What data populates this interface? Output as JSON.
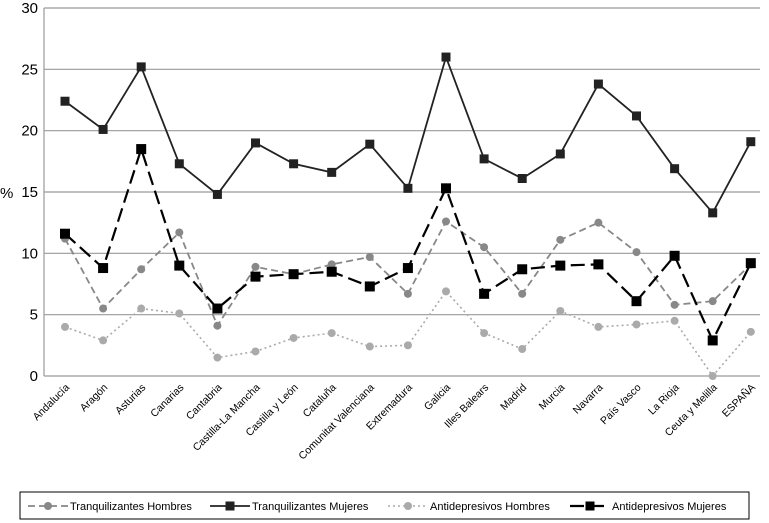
{
  "chart_data": {
    "type": "line",
    "title": "",
    "xlabel": "",
    "ylabel": "%",
    "ylim": [
      0,
      30
    ],
    "yticks": [
      0,
      5,
      10,
      15,
      20,
      25,
      30
    ],
    "grid": "horizontal",
    "legend_position": "bottom",
    "categories": [
      "Andalucía",
      "Aragón",
      "Asturias",
      "Canarias",
      "Cantabria",
      "Castilla-La Mancha",
      "Castilla y León",
      "Cataluña",
      "Comunitat Valenciana",
      "Extremadura",
      "Galicia",
      "Illes Balears",
      "Madrid",
      "Murcia",
      "Navarra",
      "País Vasco",
      "La Rioja",
      "Ceuta y Melilla",
      "ESPAÑA"
    ],
    "series": [
      {
        "name": "Tranquilizantes Hombres",
        "color": "#888888",
        "line": "dashed",
        "marker": "circle",
        "values": [
          11.2,
          5.5,
          8.7,
          11.7,
          4.1,
          8.9,
          8.3,
          9.1,
          9.7,
          6.7,
          12.6,
          10.5,
          6.7,
          11.1,
          12.5,
          10.1,
          5.8,
          6.1,
          9.1
        ]
      },
      {
        "name": "Tranquilizantes Mujeres",
        "color": "#222222",
        "line": "solid",
        "marker": "square",
        "values": [
          22.4,
          20.1,
          25.2,
          17.3,
          14.8,
          19.0,
          17.3,
          16.6,
          18.9,
          15.3,
          26.0,
          17.7,
          16.1,
          18.1,
          23.8,
          21.2,
          16.9,
          13.3,
          19.1
        ]
      },
      {
        "name": "Antidepresivos Hombres",
        "color": "#aaaaaa",
        "line": "dotted",
        "marker": "circle",
        "values": [
          4.0,
          2.9,
          5.5,
          5.1,
          1.5,
          2.0,
          3.1,
          3.5,
          2.4,
          2.5,
          6.9,
          3.5,
          2.2,
          5.3,
          4.0,
          4.2,
          4.5,
          0.0,
          3.6
        ]
      },
      {
        "name": "Antidepresivos Mujeres",
        "color": "#000000",
        "line": "longdash",
        "marker": "square",
        "values": [
          11.6,
          8.8,
          18.5,
          9.0,
          5.5,
          8.1,
          8.3,
          8.5,
          7.3,
          8.8,
          15.3,
          6.7,
          8.7,
          9.0,
          9.1,
          6.1,
          9.8,
          2.9,
          9.2
        ]
      }
    ]
  }
}
